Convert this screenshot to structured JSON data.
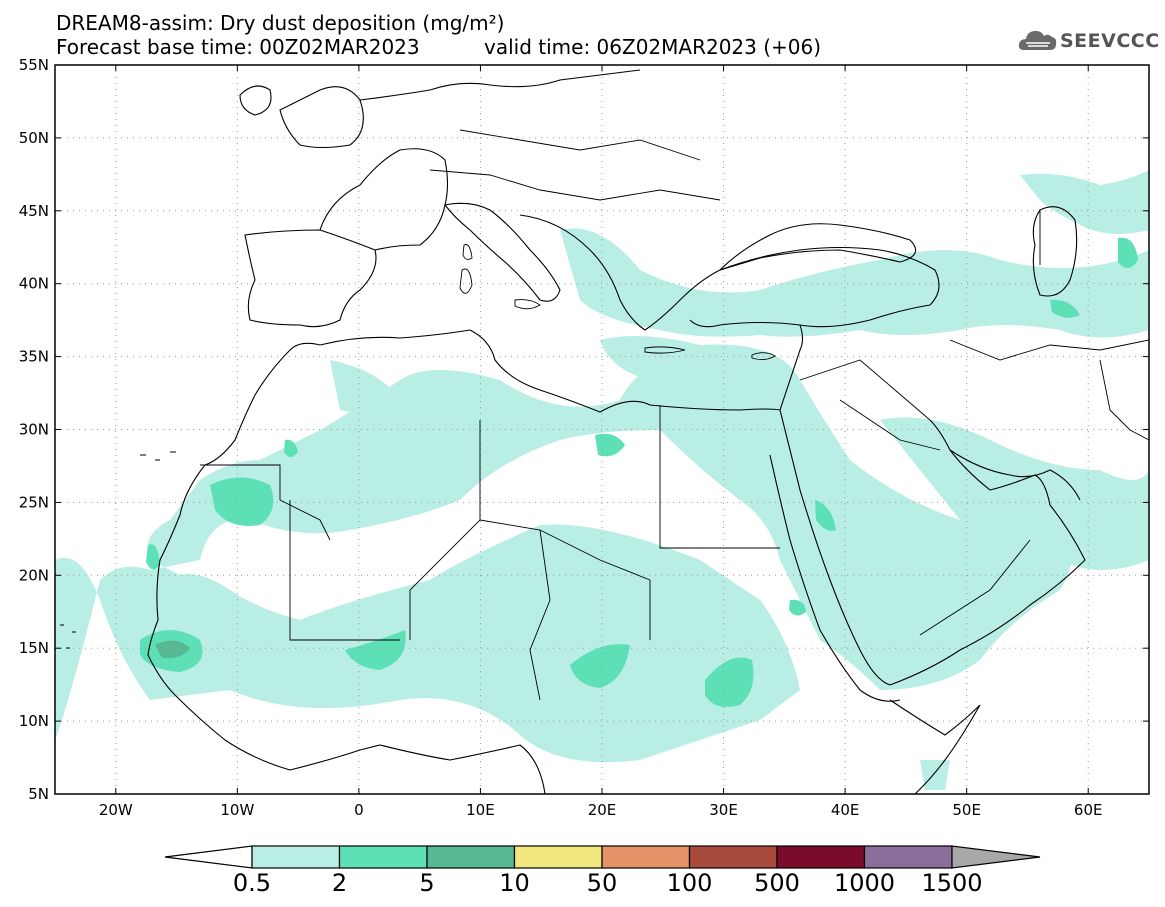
{
  "header": {
    "title_line1": "DREAM8-assim: Dry dust deposition (mg/m²)",
    "title_line2": "Forecast base time: 00Z02MAR2023",
    "valid_time": "valid time: 06Z02MAR2023 (+06)",
    "logo_text": "SEEVCCC"
  },
  "map": {
    "lon_range": [
      -25,
      65
    ],
    "lat_range": [
      5,
      55
    ],
    "lat_labels": [
      "55N",
      "50N",
      "45N",
      "40N",
      "35N",
      "30N",
      "25N",
      "20N",
      "15N",
      "10N",
      "5N"
    ],
    "lon_labels": [
      "20W",
      "10W",
      "0",
      "10E",
      "20E",
      "30E",
      "40E",
      "50E",
      "60E"
    ],
    "gridlines": true
  },
  "legend": {
    "labels": [
      "0.5",
      "2",
      "5",
      "10",
      "50",
      "100",
      "500",
      "1000",
      "1500"
    ],
    "colors": [
      "#b9eee5",
      "#5ee0b6",
      "#57b894",
      "#f2e67e",
      "#e8926a",
      "#a84a3c",
      "#7a0b2b",
      "#8c6d9c",
      "#a8a8a8"
    ],
    "left_arrow_color": "#ffffff"
  }
}
